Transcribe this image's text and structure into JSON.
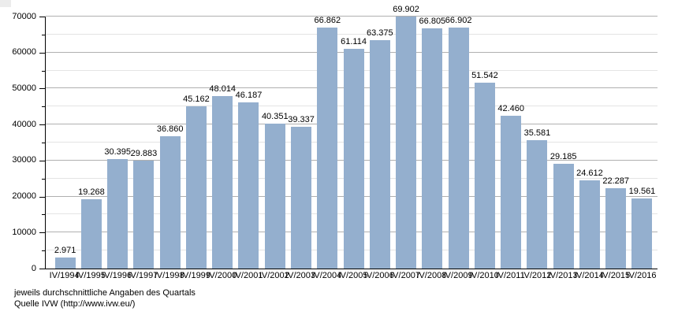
{
  "page": {
    "background": "#ffffff"
  },
  "chart_data": {
    "type": "bar",
    "title": "",
    "xlabel": "",
    "ylabel": "",
    "categories": [
      "IV/1994",
      "IV/1995",
      "IV/1996",
      "IV/1997",
      "IV/1998",
      "IV/1999",
      "IV/2000",
      "IV/2001",
      "IV/2002",
      "IV/2003",
      "IV/2004",
      "IV/2005",
      "IV/2006",
      "IV/2007",
      "IV/2008",
      "IV/2009",
      "IV/2010",
      "IV/2011",
      "IV/2012",
      "IV/2013",
      "IV/2014",
      "IV/2015",
      "IV/2016"
    ],
    "values": [
      2971,
      19268,
      30395,
      29883,
      36860,
      45162,
      48014,
      46187,
      40351,
      39337,
      66862,
      61114,
      63375,
      69902,
      66805,
      66902,
      51542,
      42460,
      35581,
      29185,
      24612,
      22287,
      19561
    ],
    "display_values": [
      "2.971",
      "19.268",
      "30.395",
      "29.883",
      "36.860",
      "45.162",
      "48.014",
      "46.187",
      "40.351",
      "39.337",
      "66.862",
      "61.114",
      "63.375",
      "69.902",
      "66.805",
      "66.902",
      "51.542",
      "42.460",
      "35.581",
      "29.185",
      "24.612",
      "22.287",
      "19.561"
    ],
    "ylim": [
      0,
      70000
    ],
    "yticks": [
      0,
      10000,
      20000,
      30000,
      40000,
      50000,
      60000,
      70000
    ],
    "ytick_labels": [
      "0",
      "10000",
      "20000",
      "30000",
      "40000",
      "50000",
      "60000",
      "70000"
    ],
    "minor_step": 5000,
    "grid": "horizontal, major at 10000 and minor at 5000",
    "legend": "none",
    "bar_color": "#94afce",
    "major_grid_color": "#b0b0b0",
    "minor_grid_color": "#e4e4e4",
    "axis_color": "#000000"
  },
  "footnotes": {
    "line1": "jeweils durchschnittliche Angaben des Quartals",
    "line2": "Quelle IVW (http://www.ivw.eu/)"
  }
}
